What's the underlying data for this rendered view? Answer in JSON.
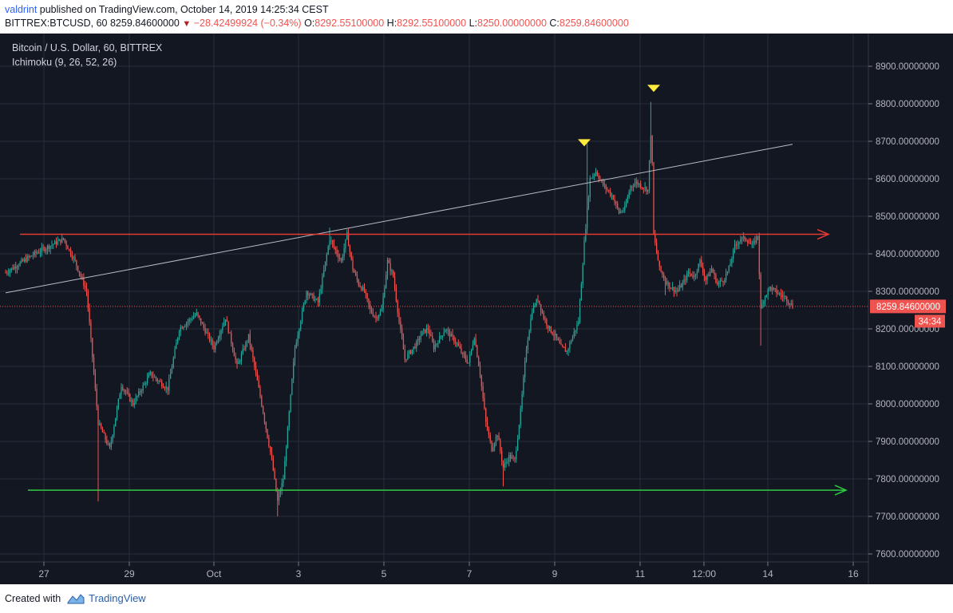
{
  "header": {
    "user": "valdrint",
    "published_text": "published on TradingView.com, October 14, 2019 14:25:34 CEST",
    "symbol": "BITTREX:BTCUSD, 60",
    "last": "8259.84600000",
    "change": "−28.42499924 (−0.34%)",
    "o_label": "O:",
    "o_value": "8292.55100000",
    "h_label": "H:",
    "h_value": "8292.55100000",
    "l_label": "L:",
    "l_value": "8250.00000000",
    "c_label": "C:",
    "c_value": "8259.84600000"
  },
  "legend": {
    "title": "Bitcoin / U.S. Dollar, 60, BITTREX",
    "indicator": "Ichimoku (9, 26, 52, 26)"
  },
  "price_tag": {
    "price": "8259.84600000",
    "countdown": "34:34"
  },
  "footer": {
    "created_with": "Created with",
    "brand": "TradingView"
  },
  "colors": {
    "background": "#131722",
    "grid": "#2a2e39",
    "up": "#26a69a",
    "down": "#ef5350",
    "resistance": "#e53935",
    "support": "#2ecc40",
    "trendline": "#b8bcc6",
    "marker": "#ffeb3b"
  },
  "chart_data": {
    "type": "candlestick",
    "title": "Bitcoin / U.S. Dollar, 60, BITTREX",
    "ylim": [
      7560,
      8960
    ],
    "yticks": [
      "8900.00000000",
      "8800.00000000",
      "8700.00000000",
      "8600.00000000",
      "8500.00000000",
      "8400.00000000",
      "8300.00000000",
      "8200.00000000",
      "8100.00000000",
      "8000.00000000",
      "7900.00000000",
      "7800.00000000",
      "7700.00000000",
      "7600.00000000"
    ],
    "xticks": [
      "27",
      "29",
      "Oct",
      "3",
      "5",
      "7",
      "9",
      "11",
      "12:00",
      "14",
      "16"
    ],
    "price_path": [
      [
        0,
        8350
      ],
      [
        5,
        8400
      ],
      [
        10,
        8440
      ],
      [
        12,
        8380
      ],
      [
        14,
        8300
      ],
      [
        16,
        7950
      ],
      [
        18,
        7880
      ],
      [
        20,
        8050
      ],
      [
        22,
        8000
      ],
      [
        25,
        8080
      ],
      [
        28,
        8040
      ],
      [
        30,
        8200
      ],
      [
        33,
        8240
      ],
      [
        36,
        8150
      ],
      [
        38,
        8230
      ],
      [
        40,
        8100
      ],
      [
        42,
        8180
      ],
      [
        44,
        8020
      ],
      [
        46,
        7850
      ],
      [
        47,
        7740
      ],
      [
        48,
        7800
      ],
      [
        50,
        8150
      ],
      [
        52,
        8300
      ],
      [
        54,
        8270
      ],
      [
        56,
        8440
      ],
      [
        58,
        8380
      ],
      [
        59,
        8450
      ],
      [
        60,
        8360
      ],
      [
        61,
        8320
      ],
      [
        62,
        8300
      ],
      [
        63,
        8250
      ],
      [
        64,
        8230
      ],
      [
        65,
        8250
      ],
      [
        66,
        8380
      ],
      [
        67,
        8340
      ],
      [
        68,
        8220
      ],
      [
        69,
        8120
      ],
      [
        71,
        8160
      ],
      [
        72,
        8190
      ],
      [
        73,
        8200
      ],
      [
        74,
        8150
      ],
      [
        76,
        8200
      ],
      [
        77,
        8180
      ],
      [
        78,
        8160
      ],
      [
        79,
        8130
      ],
      [
        80,
        8110
      ],
      [
        81,
        8180
      ],
      [
        82,
        8080
      ],
      [
        83,
        7950
      ],
      [
        84,
        7880
      ],
      [
        85,
        7920
      ],
      [
        86,
        7830
      ],
      [
        87,
        7860
      ],
      [
        88,
        7850
      ],
      [
        89,
        7980
      ],
      [
        90,
        8150
      ],
      [
        91,
        8250
      ],
      [
        92,
        8280
      ],
      [
        93,
        8230
      ],
      [
        94,
        8200
      ],
      [
        95,
        8180
      ],
      [
        96,
        8150
      ],
      [
        97,
        8140
      ],
      [
        98,
        8180
      ],
      [
        99,
        8220
      ],
      [
        100,
        8430
      ],
      [
        101,
        8600
      ],
      [
        102,
        8620
      ],
      [
        103,
        8590
      ],
      [
        104,
        8570
      ],
      [
        105,
        8550
      ],
      [
        106,
        8510
      ],
      [
        107,
        8520
      ],
      [
        108,
        8580
      ],
      [
        109,
        8590
      ],
      [
        110,
        8580
      ],
      [
        111,
        8570
      ],
      [
        111.6,
        8750
      ],
      [
        112,
        8450
      ],
      [
        113,
        8360
      ],
      [
        114,
        8330
      ],
      [
        115,
        8310
      ],
      [
        116,
        8300
      ],
      [
        117,
        8320
      ],
      [
        118,
        8350
      ],
      [
        119,
        8340
      ],
      [
        120,
        8380
      ],
      [
        121,
        8330
      ],
      [
        122,
        8360
      ],
      [
        123,
        8320
      ],
      [
        124,
        8330
      ],
      [
        125,
        8360
      ],
      [
        126,
        8420
      ],
      [
        127,
        8440
      ],
      [
        128,
        8440
      ],
      [
        129,
        8420
      ],
      [
        130,
        8450
      ],
      [
        130.5,
        8250
      ],
      [
        131,
        8280
      ],
      [
        132,
        8310
      ],
      [
        133,
        8300
      ],
      [
        134,
        8290
      ],
      [
        135,
        8280
      ],
      [
        136,
        8260
      ]
    ],
    "resistance_level": 8452,
    "support_level": 7770,
    "trendline": [
      [
        0,
        8296
      ],
      [
        136,
        8692
      ]
    ],
    "markers": [
      [
        100,
        8695
      ],
      [
        112,
        8840
      ]
    ],
    "last_price": 8259.846
  }
}
